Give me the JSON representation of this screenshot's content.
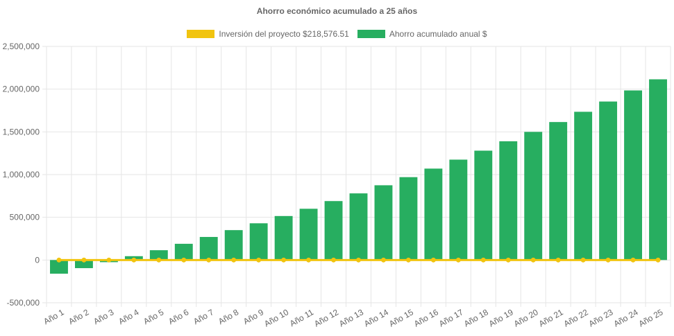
{
  "colors": {
    "investment": "#f1c40f",
    "savings": "#27ae60",
    "grid": "#e5e5e5",
    "text": "#666666"
  },
  "chart_data": {
    "type": "bar",
    "title": "Ahorro económico acumulado a 25 años",
    "categories": [
      "Año 1",
      "Año 2",
      "Año 3",
      "Año 4",
      "Año 5",
      "Año 6",
      "Año 7",
      "Año 8",
      "Año 9",
      "Año 10",
      "Año 11",
      "Año 12",
      "Año 13",
      "Año 14",
      "Año 15",
      "Año 16",
      "Año 17",
      "Año 18",
      "Año 19",
      "Año 20",
      "Año 21",
      "Año 22",
      "Año 23",
      "Año 24",
      "Año 25"
    ],
    "ylim": [
      -500000,
      2500000
    ],
    "yticks": [
      -500000,
      0,
      500000,
      1000000,
      1500000,
      2000000,
      2500000
    ],
    "ytick_labels": [
      "-500,000",
      "0",
      "500,000",
      "1,000,000",
      "1,500,000",
      "2,000,000",
      "2,500,000"
    ],
    "grid": true,
    "legend_position": "top",
    "series": [
      {
        "name": "Inversión del proyecto $218,576.51",
        "type": "line",
        "values": [
          0,
          0,
          0,
          0,
          0,
          0,
          0,
          0,
          0,
          0,
          0,
          0,
          0,
          0,
          0,
          0,
          0,
          0,
          0,
          0,
          0,
          0,
          0,
          0,
          0
        ]
      },
      {
        "name": "Ahorro acumulado anual $",
        "type": "bar",
        "values": [
          -160000,
          -95000,
          -25000,
          45000,
          115000,
          190000,
          270000,
          350000,
          430000,
          515000,
          600000,
          690000,
          780000,
          875000,
          970000,
          1070000,
          1175000,
          1280000,
          1390000,
          1500000,
          1615000,
          1735000,
          1855000,
          1985000,
          2115000
        ]
      }
    ]
  }
}
